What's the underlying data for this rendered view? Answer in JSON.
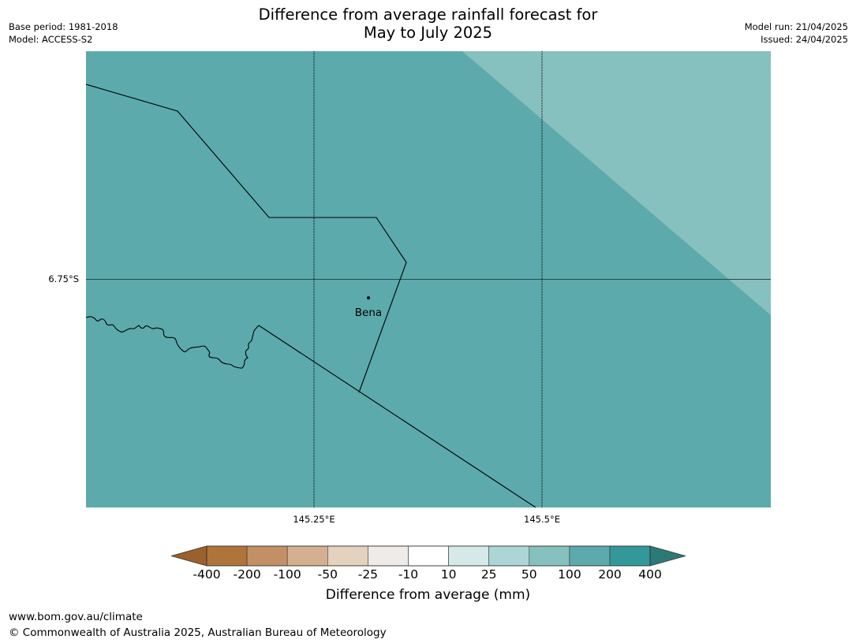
{
  "title": {
    "line1": "Difference from average rainfall forecast for",
    "line2": "May to July 2025"
  },
  "meta_left": {
    "base_period": "Base period: 1981-2018",
    "model": "Model: ACCESS-S2"
  },
  "meta_right": {
    "model_run": "Model run: 21/04/2025",
    "issued": "Issued: 24/04/2025"
  },
  "map": {
    "background_color": "#5caaab",
    "region_color": "#86c0bf",
    "town": "Bena",
    "lat_label": "6.75°S",
    "lon_labels": [
      "145.25°E",
      "145.5°E"
    ]
  },
  "legend": {
    "colors": [
      "#9a612d",
      "#ae743a",
      "#c29064",
      "#d4b090",
      "#e4d2be",
      "#efebe8",
      "#ffffff",
      "#d4e9e8",
      "#acd6d5",
      "#86c0bf",
      "#5caaab",
      "#339899",
      "#2c7a78"
    ],
    "ticks": [
      "-400",
      "-200",
      "-100",
      "-50",
      "-25",
      "-10",
      "10",
      "25",
      "50",
      "100",
      "200",
      "400"
    ],
    "label": "Difference from average (mm)"
  },
  "footer": {
    "url": "www.bom.gov.au/climate",
    "copyright": "© Commonwealth of Australia 2025, Australian Bureau of Meteorology"
  }
}
